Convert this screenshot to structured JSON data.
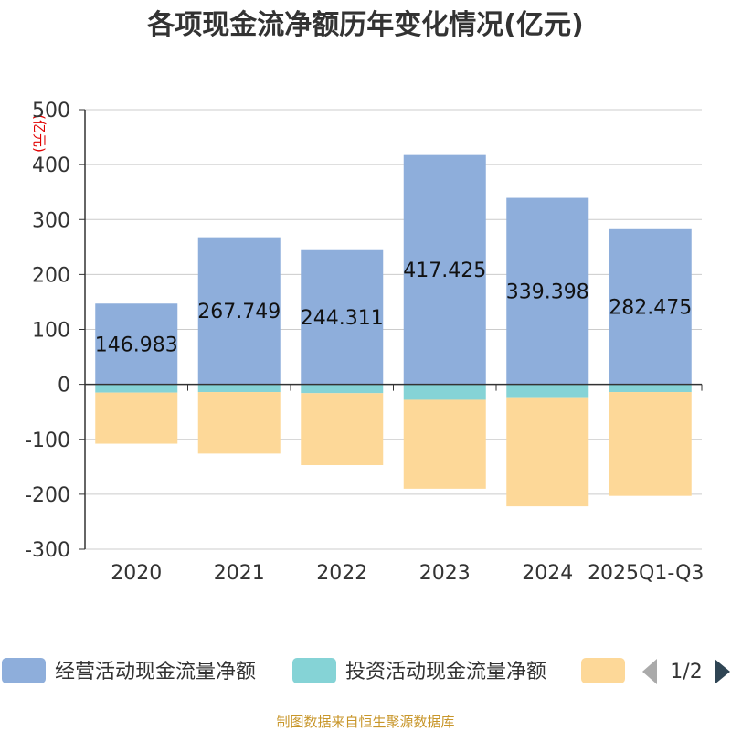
{
  "chart_data": {
    "type": "bar",
    "stacked": true,
    "title": "各项现金流净额历年变化情况(亿元)",
    "unit_label": "(亿元)",
    "categories": [
      "2020",
      "2021",
      "2022",
      "2023",
      "2024",
      "2025Q1-Q3"
    ],
    "series": [
      {
        "name": "经营活动现金流量净额",
        "color": "#8eaedb",
        "values": [
          146.983,
          267.749,
          244.311,
          417.425,
          339.398,
          282.475
        ],
        "show_labels": true
      },
      {
        "name": "投资活动现金流量净额",
        "color": "#85d3d6",
        "values": [
          -15,
          -14,
          -16,
          -28,
          -25,
          -14
        ],
        "show_labels": false
      },
      {
        "name": "",
        "color": "#fdd898",
        "values": [
          -93,
          -112,
          -131,
          -162,
          -197,
          -189
        ],
        "show_labels": false
      }
    ],
    "value_labels": [
      "146.983",
      "267.749",
      "244.311",
      "417.425",
      "339.398",
      "282.475"
    ],
    "y_ticks": [
      500,
      400,
      300,
      200,
      100,
      0,
      -100,
      -200,
      -300
    ],
    "y_tick_labels": [
      "500",
      "400",
      "300",
      "200",
      "100",
      "0",
      "-100",
      "-200",
      "-300"
    ],
    "ylim": [
      -300,
      500
    ],
    "grid": true,
    "legend_position": "bottom"
  },
  "legend": {
    "items": [
      "经营活动现金流量净额",
      "投资活动现金流量净额",
      ""
    ],
    "page_indicator": "1/2"
  },
  "source": "制图数据来自恒生聚源数据库"
}
